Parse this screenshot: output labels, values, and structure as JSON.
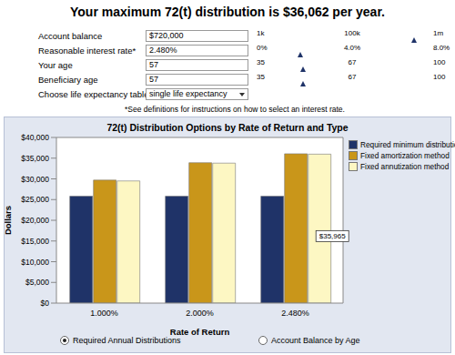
{
  "header": {
    "title": "Your maximum 72(t) distribution is $36,062 per year."
  },
  "form": {
    "rows": [
      {
        "label": "Account balance",
        "value": "$720,000",
        "slider": [
          "1k",
          "100k",
          "1m"
        ]
      },
      {
        "label": "Reasonable interest rate*",
        "value": "2.480%",
        "slider": [
          "0%",
          "4.0%",
          "8.0%"
        ]
      },
      {
        "label": "Your age",
        "value": "57",
        "slider": [
          "35",
          "67",
          "100"
        ]
      },
      {
        "label": "Beneficiary age",
        "value": "57",
        "slider": [
          "35",
          "67",
          "100"
        ]
      }
    ],
    "select": {
      "label": "Choose life expectancy table:",
      "value": "single life expectancy"
    },
    "note": "*See definitions for instructions on how to select an interest rate."
  },
  "chart_data": {
    "type": "bar",
    "title": "72(t) Distribution Options by Rate of Return and Type",
    "x_label": "Rate of Return",
    "y_label": "Dollars",
    "categories": [
      "1.000%",
      "2.000%",
      "2.480%"
    ],
    "series": [
      {
        "name": "Required minimum distribution",
        "color": "#1f3368",
        "values": [
          25806,
          25806,
          25806
        ]
      },
      {
        "name": "Fixed amortization method",
        "color": "#c9961a",
        "values": [
          29700,
          33900,
          36062
        ]
      },
      {
        "name": "Fixed annutization method",
        "color": "#fdf7c3",
        "values": [
          29500,
          33800,
          35965
        ]
      }
    ],
    "ylim": [
      0,
      40000
    ],
    "yticks": [
      {
        "value": 0,
        "label": "$0"
      },
      {
        "value": 5000,
        "label": "$5,000"
      },
      {
        "value": 10000,
        "label": "$10,000"
      },
      {
        "value": 15000,
        "label": "$15,000"
      },
      {
        "value": 20000,
        "label": "$20,000"
      },
      {
        "value": 25000,
        "label": "$25,000"
      },
      {
        "value": 30000,
        "label": "$30,000"
      },
      {
        "value": 35000,
        "label": "$35,000"
      },
      {
        "value": 40000,
        "label": "$40,000"
      }
    ],
    "grid": false,
    "legend": "right",
    "annotations": [
      {
        "series": "Fixed annutization method",
        "category": "2.480%",
        "text": "$35,965"
      }
    ]
  },
  "footer": {
    "options": [
      {
        "label": "Required Annual Distributions",
        "selected": true
      },
      {
        "label": "Account Balance by Age",
        "selected": false
      }
    ]
  }
}
